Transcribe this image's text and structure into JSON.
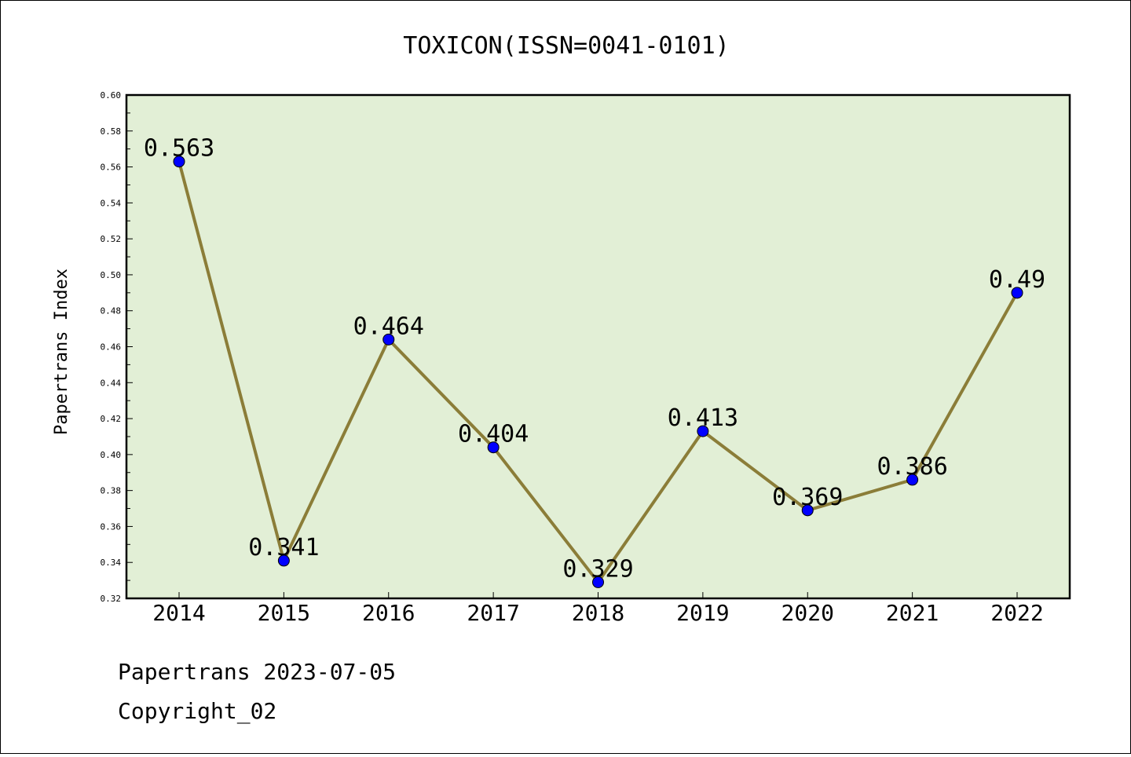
{
  "footer": {
    "line1": "Papertrans 2023-07-05",
    "line2": "Copyright_02"
  },
  "colors": {
    "plot_background": "#e2efd6",
    "line": "#8b7d38",
    "marker": "#0000ff"
  },
  "chart_data": {
    "type": "line",
    "title": "TOXICON(ISSN=0041-0101)",
    "xlabel": "",
    "ylabel": "Papertrans Index",
    "categories": [
      "2014",
      "2015",
      "2016",
      "2017",
      "2018",
      "2019",
      "2020",
      "2021",
      "2022"
    ],
    "series": [
      {
        "values": [
          0.563,
          0.341,
          0.464,
          0.404,
          0.329,
          0.413,
          0.369,
          0.386,
          0.49
        ],
        "labels": [
          "0.563",
          "0.341",
          "0.464",
          "0.404",
          "0.329",
          "0.413",
          "0.369",
          "0.386",
          "0.49"
        ]
      }
    ],
    "ylim": [
      0.32,
      0.6
    ],
    "yticks": [
      "0.32",
      "0.34",
      "0.36",
      "0.38",
      "0.40",
      "0.42",
      "0.44",
      "0.46",
      "0.48",
      "0.50",
      "0.52",
      "0.54",
      "0.56",
      "0.58",
      "0.60"
    ],
    "grid": false,
    "legend": "none"
  }
}
